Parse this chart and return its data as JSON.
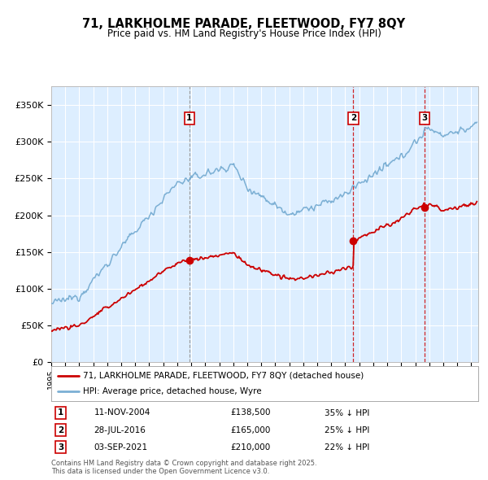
{
  "title": "71, LARKHOLME PARADE, FLEETWOOD, FY7 8QY",
  "subtitle": "Price paid vs. HM Land Registry's House Price Index (HPI)",
  "legend_line1": "71, LARKHOLME PARADE, FLEETWOOD, FY7 8QY (detached house)",
  "legend_line2": "HPI: Average price, detached house, Wyre",
  "footer1": "Contains HM Land Registry data © Crown copyright and database right 2025.",
  "footer2": "This data is licensed under the Open Government Licence v3.0.",
  "transactions": [
    {
      "label": "1",
      "date": "11-NOV-2004",
      "price": 138500,
      "pct": "35% ↓ HPI",
      "x_year": 2004.87
    },
    {
      "label": "2",
      "date": "28-JUL-2016",
      "price": 165000,
      "pct": "25% ↓ HPI",
      "x_year": 2016.58
    },
    {
      "label": "3",
      "date": "03-SEP-2021",
      "price": 210000,
      "pct": "22% ↓ HPI",
      "x_year": 2021.67
    }
  ],
  "hpi_color": "#7bafd4",
  "price_color": "#cc0000",
  "bg_color": "#ddeeff",
  "plot_bg": "#ffffff",
  "vline_color": "#cc0000",
  "vline1_color": "#999999",
  "ylim": [
    0,
    375000
  ],
  "yticks": [
    0,
    50000,
    100000,
    150000,
    200000,
    250000,
    300000,
    350000
  ],
  "xlim_start": 1995.0,
  "xlim_end": 2025.5
}
